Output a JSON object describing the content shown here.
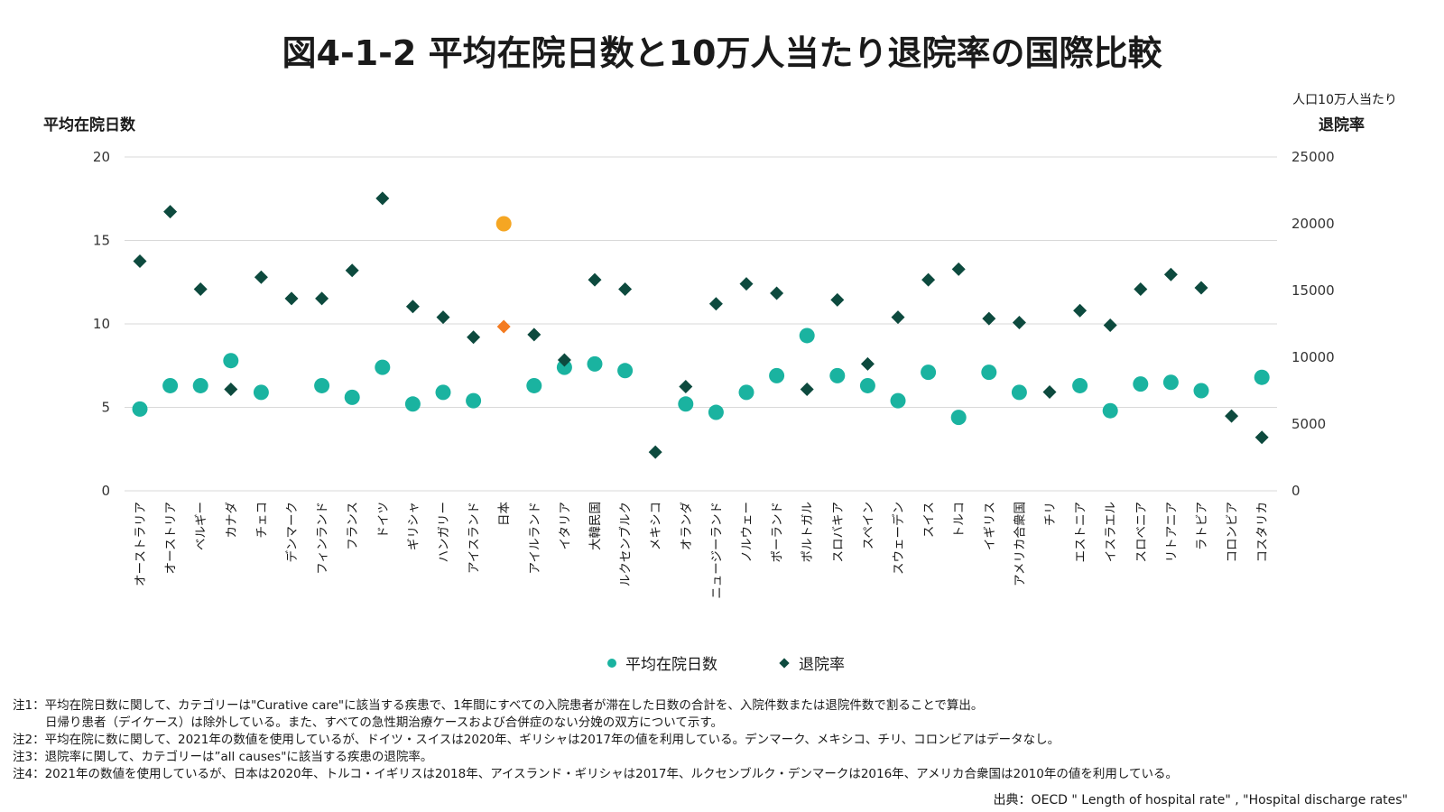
{
  "title": "図4-1-2 平均在院日数と10万人当たり退院率の国際比較",
  "notes": [
    "注1：平均在院日数に関して、カテゴリーは\"Curative care\"に該当する疾患で、1年間にすべての入院患者が滞在した日数の合計を、入院件数または退院件数で割ることで算出。",
    "日帰り患者（デイケース）は除外している。また、すべての急性期治療ケースおよび合併症のない分娩の双方について示す。",
    "注2：平均在院に数に関して、2021年の数値を使用しているが、ドイツ・スイスは2020年、ギリシャは2017年の値を利用している。デンマーク、メキシコ、チリ、コロンビアはデータなし。",
    "注3：退院率に関して、カテゴリーは”all causes\"に該当する疾患の退院率。",
    "注4：2021年の数値を使用しているが、日本は2020年、トルコ・イギリスは2018年、アイスランド・ギリシャは2017年、ルクセンブルク・デンマークは2016年、アメリカ合衆国は2010年の値を利用している。"
  ],
  "source": "出典：OECD \" Length of hospital rate\" , \"Hospital discharge rates\"",
  "colors": {
    "los": "#1ab3a0",
    "discharge": "#0d4a3e",
    "japan_los": "#f5a623",
    "japan_discharge": "#f47b20",
    "grid": "#d9d9d9"
  },
  "chart_data": {
    "type": "scatter",
    "title": "図4-1-2 平均在院日数と10万人当たり退院率の国際比較",
    "ylabel": "平均在院日数",
    "y2label_top": "人口10万人当たり",
    "y2label": "退院率",
    "ylim": [
      0,
      20
    ],
    "y2lim": [
      0,
      25000
    ],
    "yticks": [
      "0",
      "5",
      "10",
      "15",
      "20"
    ],
    "y2ticks": [
      "0",
      "5000",
      "10000",
      "15000",
      "20000",
      "25000"
    ],
    "grid": true,
    "legend_position": "bottom",
    "highlight_category": "日本",
    "categories": [
      "オーストラリア",
      "オーストリア",
      "ベルギー",
      "カナダ",
      "チェコ",
      "デンマーク",
      "フィンランド",
      "フランス",
      "ドイツ",
      "ギリシャ",
      "ハンガリー",
      "アイスランド",
      "日本",
      "アイルランド",
      "イタリア",
      "大韓民国",
      "ルクセンブルク",
      "メキシコ",
      "オランダ",
      "ニュージーランド",
      "ノルウェー",
      "ポーランド",
      "ポルトガル",
      "スロバキア",
      "スペイン",
      "スウェーデン",
      "スイス",
      "トルコ",
      "イギリス",
      "アメリカ合衆国",
      "チリ",
      "エストニア",
      "イスラエル",
      "スロベニア",
      "リトアニア",
      "ラトビア",
      "コロンビア",
      "コスタリカ"
    ],
    "series": [
      {
        "name": "平均在院日数",
        "marker": "circle",
        "axis": "left",
        "values": [
          4.9,
          6.3,
          6.3,
          7.8,
          5.9,
          null,
          6.3,
          5.6,
          7.4,
          5.2,
          5.9,
          5.4,
          16.0,
          6.3,
          7.4,
          7.6,
          7.2,
          null,
          5.2,
          4.7,
          5.9,
          6.9,
          9.3,
          6.9,
          6.3,
          5.4,
          7.1,
          4.4,
          7.1,
          5.9,
          null,
          6.3,
          4.8,
          6.4,
          6.5,
          6.0,
          null,
          6.8
        ]
      },
      {
        "name": "退院率",
        "marker": "diamond",
        "axis": "right",
        "values": [
          17200,
          20900,
          15100,
          7600,
          16000,
          14400,
          14400,
          16500,
          21900,
          13800,
          13000,
          11500,
          12300,
          11700,
          9800,
          15800,
          15100,
          2900,
          7800,
          14000,
          15500,
          14800,
          7600,
          14300,
          9500,
          13000,
          15800,
          16600,
          12900,
          12600,
          7400,
          13500,
          12400,
          15100,
          16200,
          15200,
          5600,
          4000
        ]
      }
    ]
  }
}
